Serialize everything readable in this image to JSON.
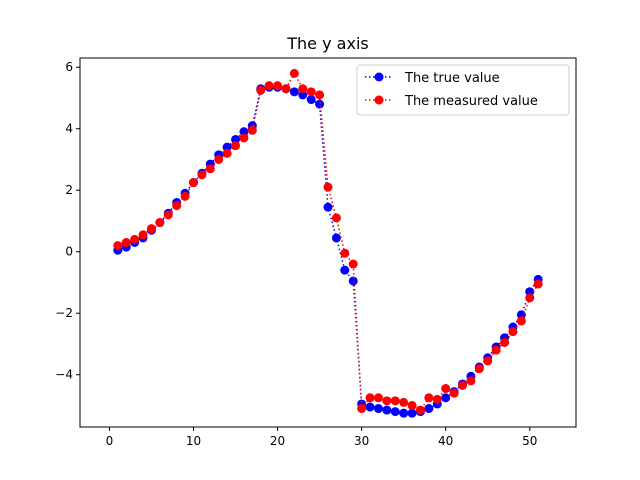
{
  "chart_data": {
    "type": "line",
    "title": "The y axis",
    "xlabel": "",
    "ylabel": "",
    "xlim": [
      -3.5,
      55.5
    ],
    "ylim": [
      -5.7,
      6.3
    ],
    "xticks": [
      0,
      10,
      20,
      30,
      40,
      50
    ],
    "yticks": [
      -4,
      -2,
      0,
      2,
      4,
      6
    ],
    "xtick_labels": [
      "0",
      "10",
      "20",
      "30",
      "40",
      "50"
    ],
    "ytick_labels": [
      "−4",
      "−2",
      "0",
      "2",
      "4",
      "6"
    ],
    "grid": false,
    "legend": "top-right",
    "x": [
      1,
      2,
      3,
      4,
      5,
      6,
      7,
      8,
      9,
      10,
      11,
      12,
      13,
      14,
      15,
      16,
      17,
      18,
      19,
      20,
      21,
      22,
      23,
      24,
      25,
      26,
      27,
      28,
      29,
      30,
      31,
      32,
      33,
      34,
      35,
      36,
      37,
      38,
      39,
      40,
      41,
      42,
      43,
      44,
      45,
      46,
      47,
      48,
      49,
      50,
      51
    ],
    "series": [
      {
        "name": "The true value",
        "color": "#0000ff",
        "line_style": "dotted",
        "marker": "circle",
        "values": [
          0.05,
          0.15,
          0.3,
          0.45,
          0.7,
          0.95,
          1.25,
          1.6,
          1.9,
          2.25,
          2.55,
          2.85,
          3.15,
          3.4,
          3.65,
          3.9,
          4.1,
          5.3,
          5.35,
          5.35,
          5.3,
          5.2,
          5.1,
          4.95,
          4.8,
          1.45,
          0.45,
          -0.6,
          -0.95,
          -4.95,
          -5.05,
          -5.1,
          -5.15,
          -5.2,
          -5.25,
          -5.25,
          -5.2,
          -5.1,
          -4.95,
          -4.75,
          -4.55,
          -4.3,
          -4.05,
          -3.75,
          -3.45,
          -3.1,
          -2.8,
          -2.45,
          -2.05,
          -1.3,
          -0.9
        ]
      },
      {
        "name": "The measured value",
        "color": "#ff0000",
        "line_style": "dotted",
        "marker": "circle",
        "values": [
          0.2,
          0.3,
          0.4,
          0.55,
          0.75,
          0.95,
          1.2,
          1.5,
          1.8,
          2.25,
          2.5,
          2.7,
          3.0,
          3.2,
          3.45,
          3.7,
          3.95,
          5.25,
          5.4,
          5.4,
          5.3,
          5.8,
          5.3,
          5.2,
          5.1,
          2.1,
          1.1,
          -0.05,
          -0.4,
          -5.1,
          -4.75,
          -4.75,
          -4.85,
          -4.85,
          -4.9,
          -5.0,
          -5.15,
          -4.75,
          -4.8,
          -4.45,
          -4.6,
          -4.35,
          -4.2,
          -3.8,
          -3.55,
          -3.2,
          -2.95,
          -2.6,
          -2.25,
          -1.5,
          -1.05
        ]
      }
    ]
  }
}
